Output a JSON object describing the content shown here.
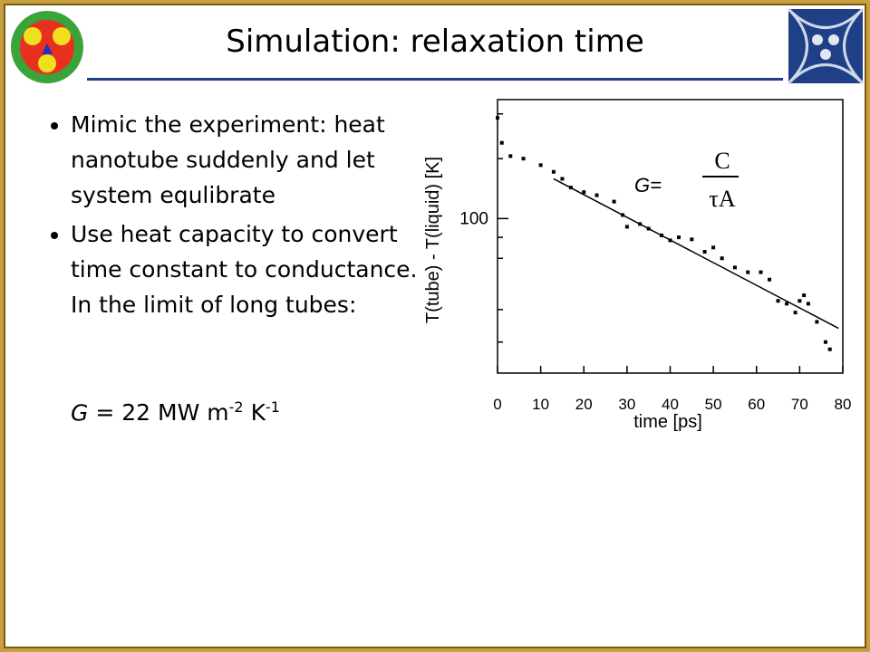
{
  "header": {
    "title": "Simulation: relaxation time"
  },
  "bullets": [
    "Mimic the experiment: heat nanotube suddenly and let system equlibrate",
    "Use heat capacity to convert time constant to conductance. In the limit of long tubes:"
  ],
  "result": {
    "symbol": "G",
    "text": "= 22 MW m",
    "exp1": "-2",
    "unit2": "K",
    "exp2": "-1"
  },
  "chart_data": {
    "type": "scatter",
    "xlabel": "time [ps]",
    "ylabel": "T(tube) - T(liquid) [K]",
    "x": [
      0,
      1,
      3,
      6,
      10,
      13,
      15,
      17,
      20,
      23,
      27,
      29,
      30,
      33,
      35,
      38,
      40,
      42,
      45,
      48,
      50,
      52,
      55,
      58,
      61,
      63,
      65,
      67,
      69,
      70,
      71,
      72,
      74,
      76,
      77
    ],
    "values": [
      176,
      153,
      142,
      140,
      135,
      130,
      125,
      119,
      116,
      114,
      110,
      102,
      95.5,
      97,
      94.5,
      91,
      88.5,
      90,
      89,
      83,
      85,
      80,
      76,
      74,
      74,
      71,
      63,
      62,
      59,
      63,
      65,
      62,
      56,
      50,
      48
    ],
    "color": "#000000",
    "fit": {
      "x": [
        13,
        79
      ],
      "values": [
        125,
        54
      ]
    },
    "xlim": [
      0,
      80
    ],
    "xticks": [
      0,
      10,
      20,
      30,
      40,
      50,
      60,
      70,
      80
    ],
    "ylim": [
      42,
      195
    ],
    "yticks": [
      100
    ],
    "minor_yticks": [
      50,
      60,
      80,
      90,
      140,
      180
    ],
    "log_y": true,
    "formula": {
      "lhs": "G=",
      "numerator": "C",
      "denominator": "τA"
    }
  }
}
